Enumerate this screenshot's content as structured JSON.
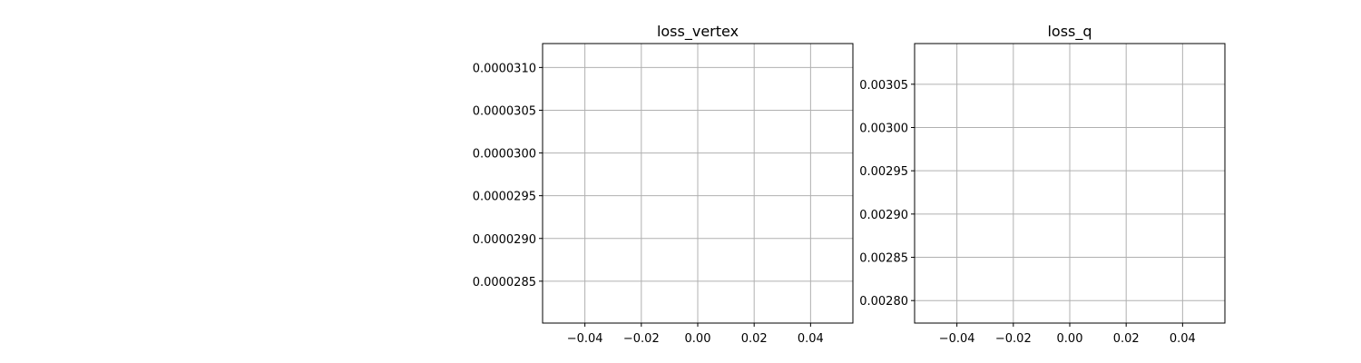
{
  "chart_data": [
    {
      "type": "line",
      "title": "loss_vertex",
      "xlabel": "",
      "ylabel": "",
      "grid": true,
      "xlim": [
        -0.055,
        0.055
      ],
      "ylim": [
        2.801e-05,
        3.128e-05
      ],
      "x_ticks": [
        -0.04,
        -0.02,
        0.0,
        0.02,
        0.04
      ],
      "x_tick_labels": [
        "−0.04",
        "−0.02",
        "0.00",
        "0.02",
        "0.04"
      ],
      "y_ticks": [
        2.85e-05,
        2.9e-05,
        2.95e-05,
        3e-05,
        3.05e-05,
        3.1e-05
      ],
      "y_tick_labels": [
        "0.0000285",
        "0.0000290",
        "0.0000295",
        "0.0000300",
        "0.0000305",
        "0.0000310"
      ],
      "series": [
        {
          "values": []
        }
      ]
    },
    {
      "type": "line",
      "title": "loss_q",
      "xlabel": "",
      "ylabel": "",
      "grid": true,
      "xlim": [
        -0.055,
        0.055
      ],
      "ylim": [
        0.002774,
        0.003097
      ],
      "x_ticks": [
        -0.04,
        -0.02,
        0.0,
        0.02,
        0.04
      ],
      "x_tick_labels": [
        "−0.04",
        "−0.02",
        "0.00",
        "0.02",
        "0.04"
      ],
      "y_ticks": [
        0.0028,
        0.00285,
        0.0029,
        0.00295,
        0.003,
        0.00305
      ],
      "y_tick_labels": [
        "0.00280",
        "0.00285",
        "0.00290",
        "0.00295",
        "0.00300",
        "0.00305"
      ],
      "series": [
        {
          "values": []
        }
      ]
    }
  ]
}
